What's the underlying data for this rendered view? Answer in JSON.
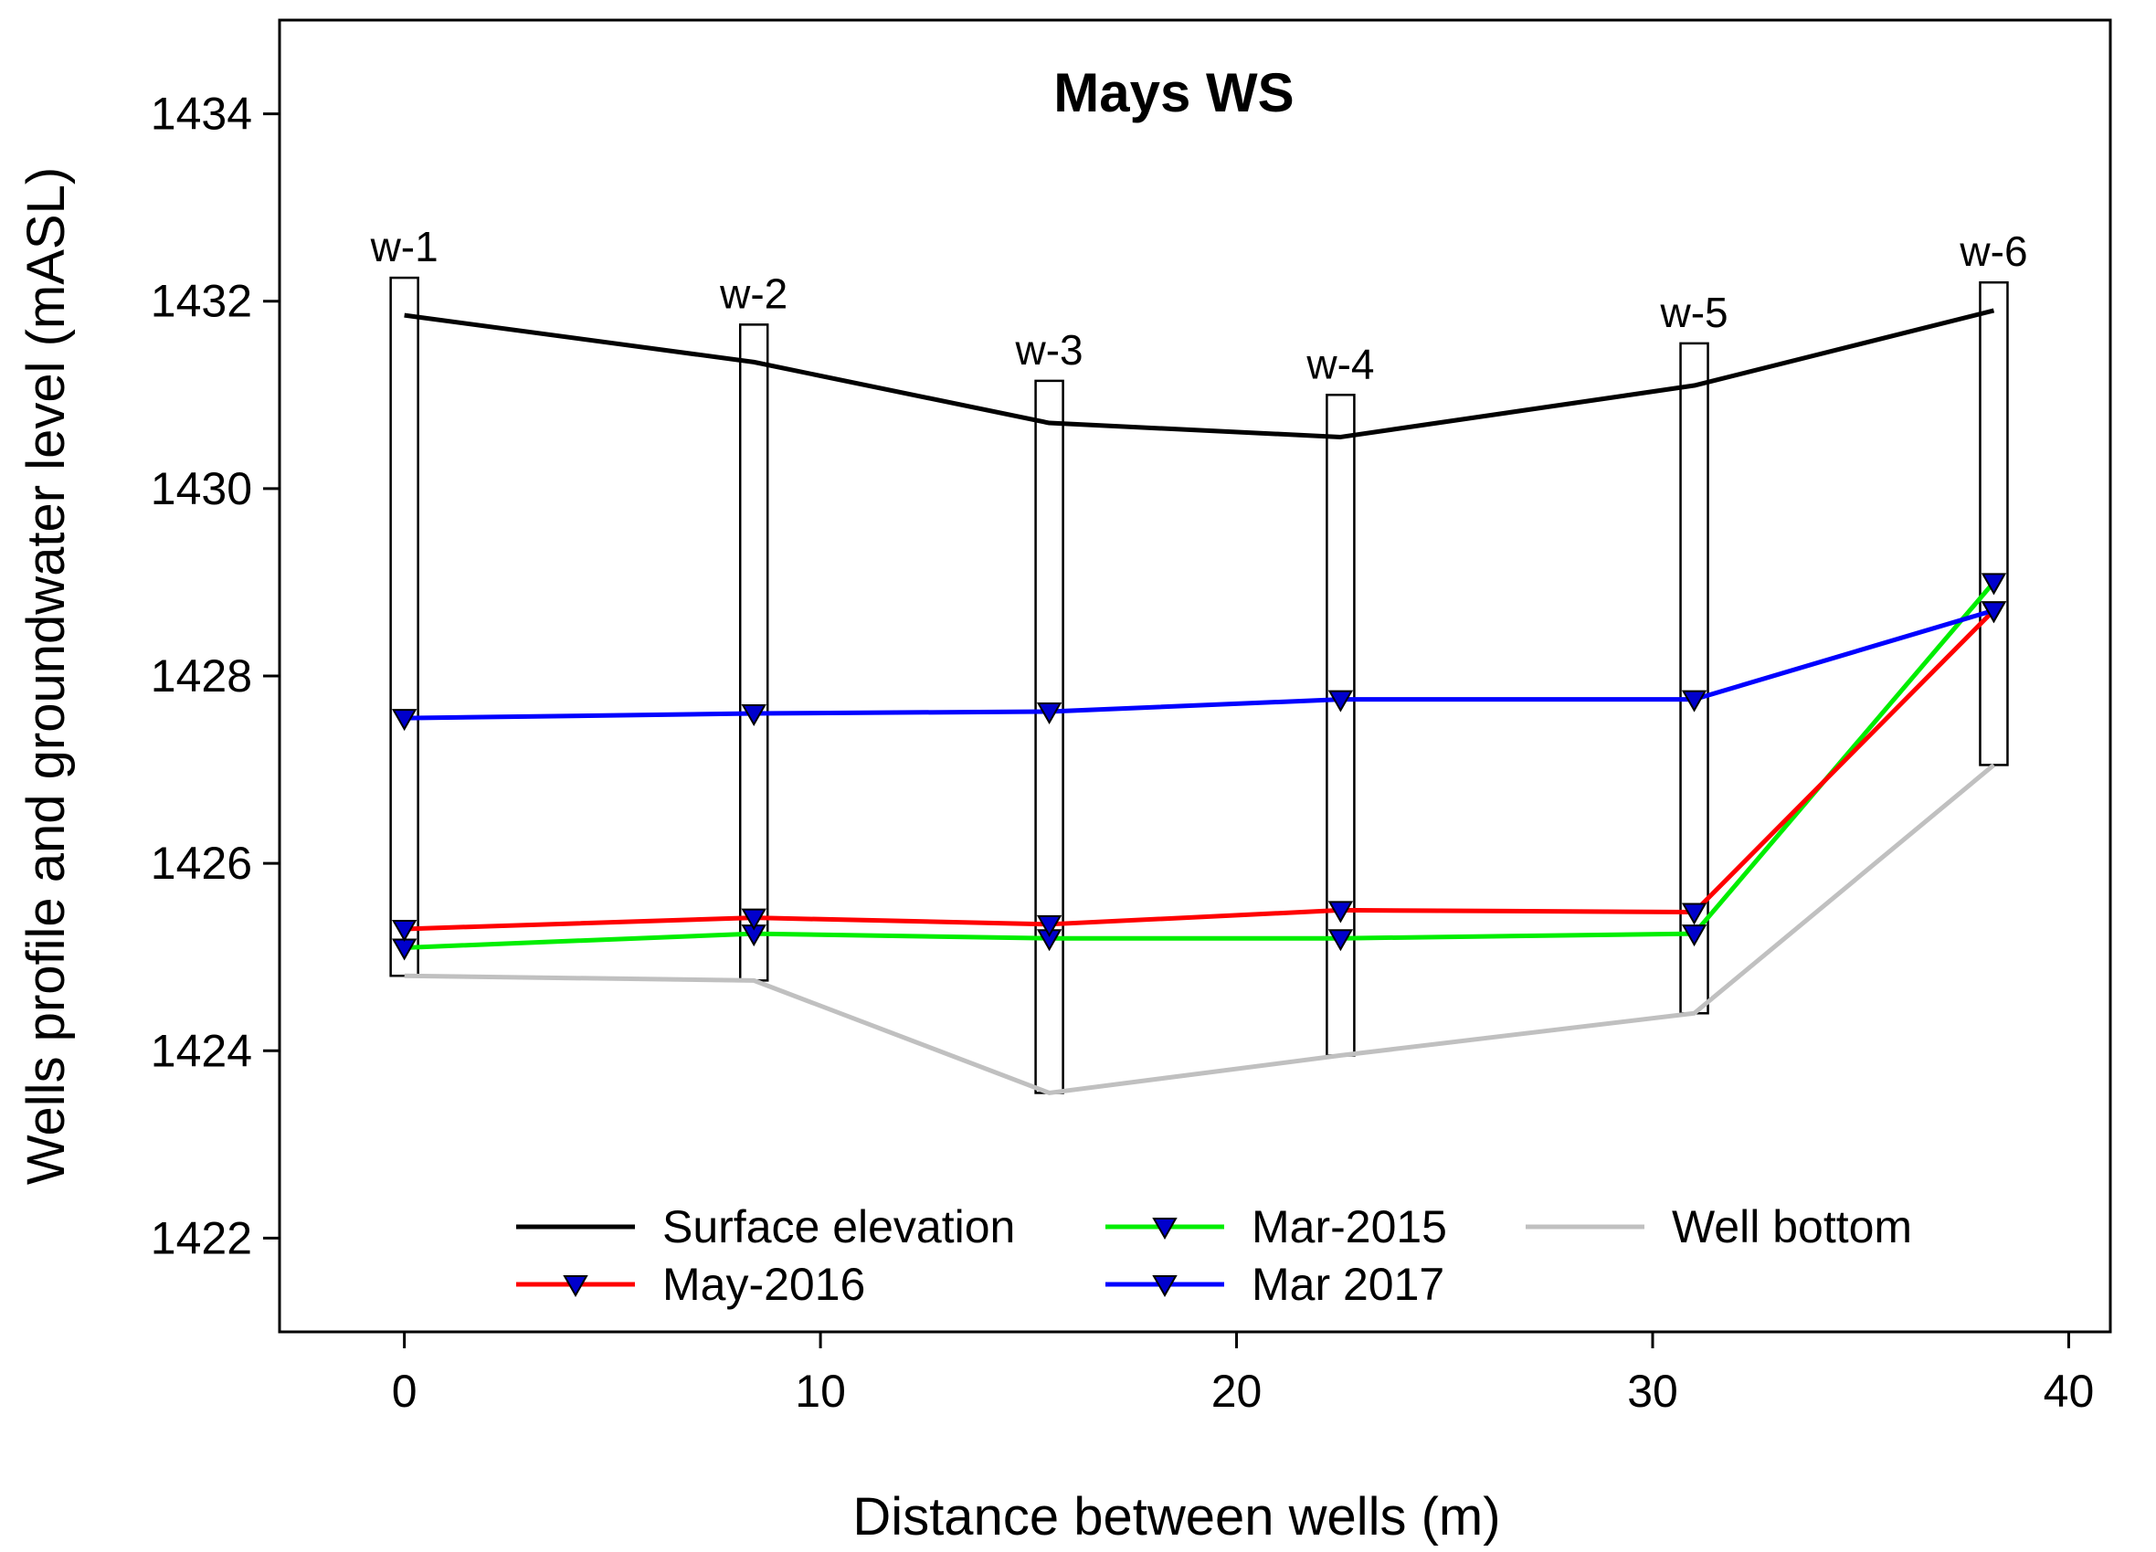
{
  "chart_data": {
    "type": "line",
    "title": "Mays WS",
    "xlabel": "Distance between wells (m)",
    "ylabel": "Wells profile and groundwater level (mASL)",
    "xlim": [
      -3,
      41
    ],
    "ylim": [
      1421,
      1435
    ],
    "xticks": [
      0,
      10,
      20,
      30,
      40
    ],
    "yticks": [
      1422,
      1424,
      1426,
      1428,
      1430,
      1432,
      1434
    ],
    "x": [
      0,
      8.4,
      15.5,
      22.5,
      31,
      38.2
    ],
    "wells": [
      {
        "label": "w-1",
        "top": 1432.25,
        "bottom": 1424.8
      },
      {
        "label": "w-2",
        "top": 1431.75,
        "bottom": 1424.75
      },
      {
        "label": "w-3",
        "top": 1431.15,
        "bottom": 1423.55
      },
      {
        "label": "w-4",
        "top": 1431.0,
        "bottom": 1423.95
      },
      {
        "label": "w-5",
        "top": 1431.55,
        "bottom": 1424.4
      },
      {
        "label": "w-6",
        "top": 1432.2,
        "bottom": 1427.05
      }
    ],
    "series": [
      {
        "name": "Surface elevation",
        "color": "#000000",
        "marker": false,
        "values": [
          1431.85,
          1431.35,
          1430.7,
          1430.55,
          1431.1,
          1431.9
        ]
      },
      {
        "name": "Mar-2015",
        "color": "#00ee00",
        "marker": true,
        "values": [
          1425.1,
          1425.25,
          1425.2,
          1425.2,
          1425.25,
          1429.0
        ]
      },
      {
        "name": "Well bottom",
        "color": "#c0c0c0",
        "marker": false,
        "values": [
          1424.8,
          1424.75,
          1423.55,
          1423.95,
          1424.4,
          1427.05
        ]
      },
      {
        "name": "May-2016",
        "color": "#ff0000",
        "marker": true,
        "values": [
          1425.3,
          1425.42,
          1425.35,
          1425.5,
          1425.48,
          1428.7
        ]
      },
      {
        "name": "Mar 2017",
        "color": "#0000ff",
        "marker": true,
        "values": [
          1427.55,
          1427.6,
          1427.62,
          1427.75,
          1427.75,
          1428.7
        ]
      }
    ],
    "legend_order": [
      "Surface elevation",
      "Mar-2015",
      "Well bottom",
      "May-2016",
      "Mar 2017"
    ],
    "legend_position": "bottom"
  }
}
